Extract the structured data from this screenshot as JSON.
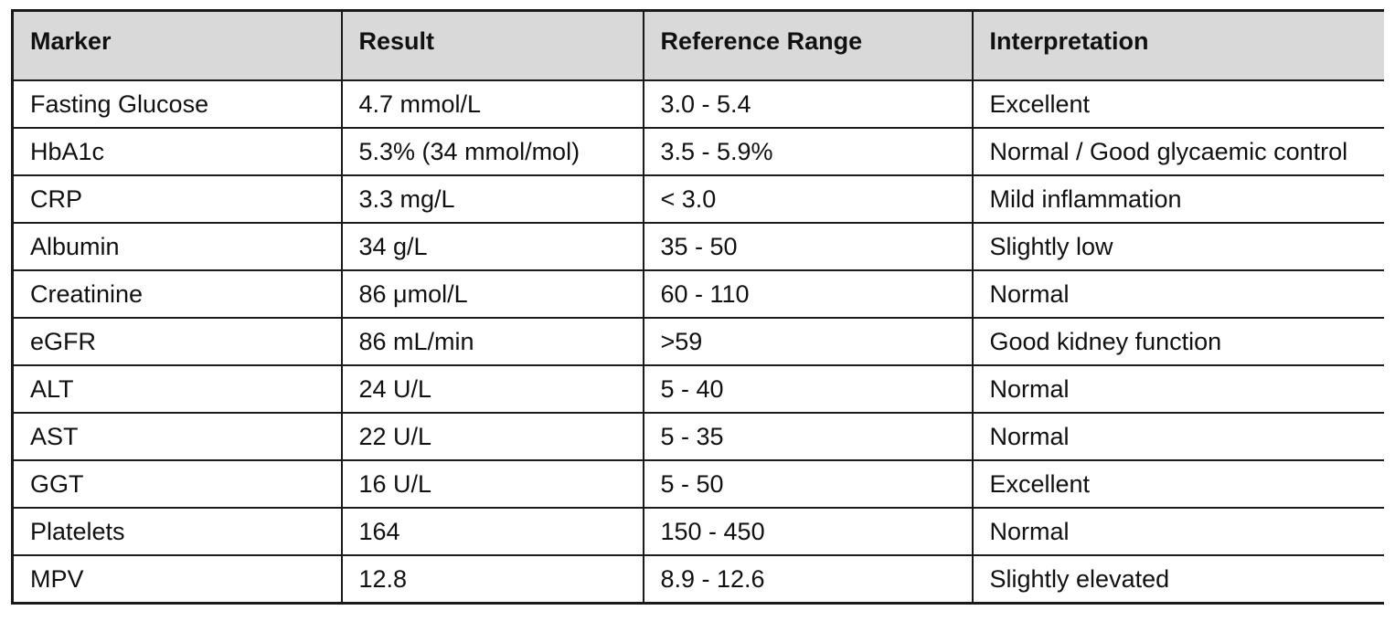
{
  "table": {
    "headers": [
      "Marker",
      "Result",
      "Reference Range",
      "Interpretation"
    ],
    "rows": [
      [
        "Fasting Glucose",
        "4.7 mmol/L",
        "3.0 - 5.4",
        "Excellent"
      ],
      [
        "HbA1c",
        "5.3% (34 mmol/mol)",
        "3.5 - 5.9%",
        "Normal / Good glycaemic control"
      ],
      [
        "CRP",
        "3.3 mg/L",
        "< 3.0",
        "Mild inflammation"
      ],
      [
        "Albumin",
        "34 g/L",
        "35 - 50",
        "Slightly low"
      ],
      [
        "Creatinine",
        "86 μmol/L",
        "60 - 110",
        "Normal"
      ],
      [
        "eGFR",
        "86 mL/min",
        ">59",
        "Good kidney function"
      ],
      [
        "ALT",
        "24 U/L",
        "5 - 40",
        "Normal"
      ],
      [
        "AST",
        "22 U/L",
        "5 - 35",
        "Normal"
      ],
      [
        "GGT",
        "16 U/L",
        "5 - 50",
        "Excellent"
      ],
      [
        "Platelets",
        "164",
        "150 - 450",
        "Normal"
      ],
      [
        "MPV",
        "12.8",
        "8.9 - 12.6",
        "Slightly elevated"
      ]
    ]
  },
  "colors": {
    "header_background": "#d9d9d9",
    "border": "#1a1a1a",
    "text": "#111111"
  }
}
